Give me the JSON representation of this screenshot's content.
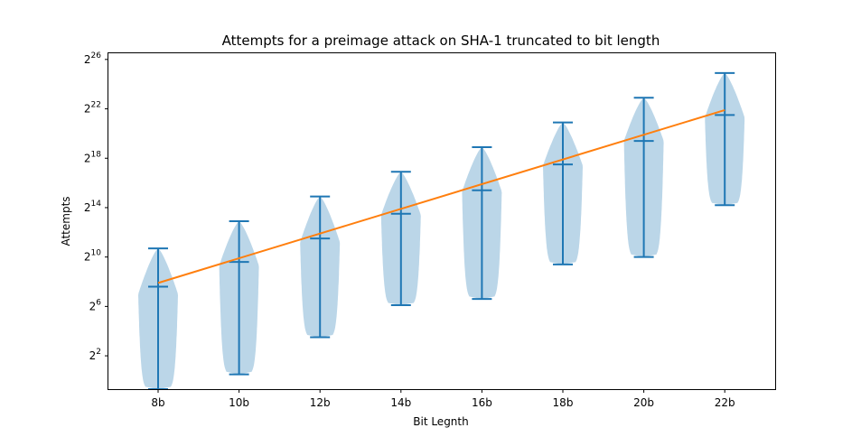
{
  "chart_data": {
    "type": "violin",
    "title": "Attempts for a preimage attack on SHA-1 truncated to bit length",
    "xlabel": "Bit Legnth",
    "ylabel": "Attempts",
    "categories": [
      "8b",
      "10b",
      "12b",
      "14b",
      "16b",
      "18b",
      "20b",
      "22b"
    ],
    "y_scale": "log2",
    "ylim_exponent": [
      -0.7,
      26.5
    ],
    "y_ticks": [
      {
        "base": "2",
        "exp": "2",
        "value": 2
      },
      {
        "base": "2",
        "exp": "6",
        "value": 6
      },
      {
        "base": "2",
        "exp": "10",
        "value": 10
      },
      {
        "base": "2",
        "exp": "14",
        "value": 14
      },
      {
        "base": "2",
        "exp": "18",
        "value": 18
      },
      {
        "base": "2",
        "exp": "22",
        "value": 22
      },
      {
        "base": "2",
        "exp": "26",
        "value": 26
      }
    ],
    "violins": [
      {
        "category": "8b",
        "min": -0.7,
        "median": 7.6,
        "max": 10.7,
        "peak": 7.0
      },
      {
        "category": "10b",
        "min": 0.5,
        "median": 9.6,
        "max": 12.9,
        "peak": 9.3
      },
      {
        "category": "12b",
        "min": 3.5,
        "median": 11.5,
        "max": 14.9,
        "peak": 11.2
      },
      {
        "category": "14b",
        "min": 6.1,
        "median": 13.5,
        "max": 16.9,
        "peak": 13.4
      },
      {
        "category": "16b",
        "min": 6.6,
        "median": 15.4,
        "max": 18.9,
        "peak": 15.3
      },
      {
        "category": "18b",
        "min": 9.4,
        "median": 17.5,
        "max": 20.9,
        "peak": 17.4
      },
      {
        "category": "20b",
        "min": 10.0,
        "median": 19.4,
        "max": 22.9,
        "peak": 19.4
      },
      {
        "category": "22b",
        "min": 14.2,
        "median": 21.5,
        "max": 24.9,
        "peak": 21.3
      }
    ],
    "trend_line": {
      "x": [
        "8b",
        "22b"
      ],
      "y": [
        7.9,
        21.9
      ]
    },
    "colors": {
      "violin_fill": "#1f77b4",
      "violin_opacity": 0.3,
      "whisker": "#1f77b4",
      "trend": "#ff7f0e"
    },
    "grid": false
  }
}
